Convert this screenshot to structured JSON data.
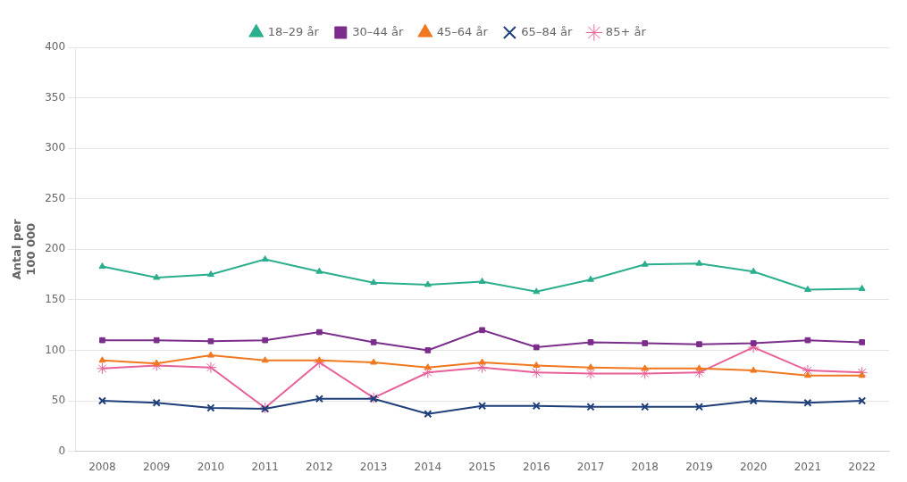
{
  "chart_data": {
    "type": "line",
    "x": [
      2008,
      2009,
      2010,
      2011,
      2012,
      2013,
      2014,
      2015,
      2016,
      2017,
      2018,
      2019,
      2020,
      2021,
      2022
    ],
    "series": [
      {
        "name": "18–29 år",
        "color": "#2BAE8E",
        "marker": "triangle",
        "values": [
          183,
          172,
          175,
          190,
          178,
          167,
          165,
          168,
          158,
          170,
          185,
          186,
          178,
          160,
          161
        ]
      },
      {
        "name": "30–44 år",
        "color": "#7B2D8B",
        "marker": "square",
        "values": [
          110,
          110,
          109,
          110,
          118,
          108,
          100,
          120,
          103,
          108,
          107,
          106,
          107,
          110,
          108
        ]
      },
      {
        "name": "45–64 år",
        "color": "#F07820",
        "marker": "triangle",
        "values": [
          90,
          87,
          95,
          90,
          90,
          88,
          83,
          88,
          85,
          83,
          82,
          82,
          80,
          75,
          75
        ]
      },
      {
        "name": "65–84 år",
        "color": "#1F3F7A",
        "marker": "x",
        "values": [
          50,
          48,
          43,
          42,
          52,
          52,
          37,
          45,
          45,
          44,
          44,
          44,
          50,
          48,
          50
        ]
      },
      {
        "name": "85+ år",
        "color": "#E8609A",
        "marker": "star",
        "values": [
          82,
          85,
          83,
          43,
          88,
          53,
          78,
          83,
          78,
          77,
          77,
          78,
          103,
          80,
          78
        ]
      }
    ],
    "ylabel": "Antal per\n100 000",
    "xlim": [
      2007.5,
      2022.5
    ],
    "xticks": [
      2008,
      2009,
      2010,
      2011,
      2012,
      2013,
      2014,
      2015,
      2016,
      2017,
      2018,
      2019,
      2020,
      2021,
      2022
    ],
    "ylim": [
      0,
      400
    ],
    "yticks": [
      0,
      50,
      100,
      150,
      200,
      250,
      300,
      350,
      400
    ],
    "grid": true,
    "legend": "top"
  }
}
